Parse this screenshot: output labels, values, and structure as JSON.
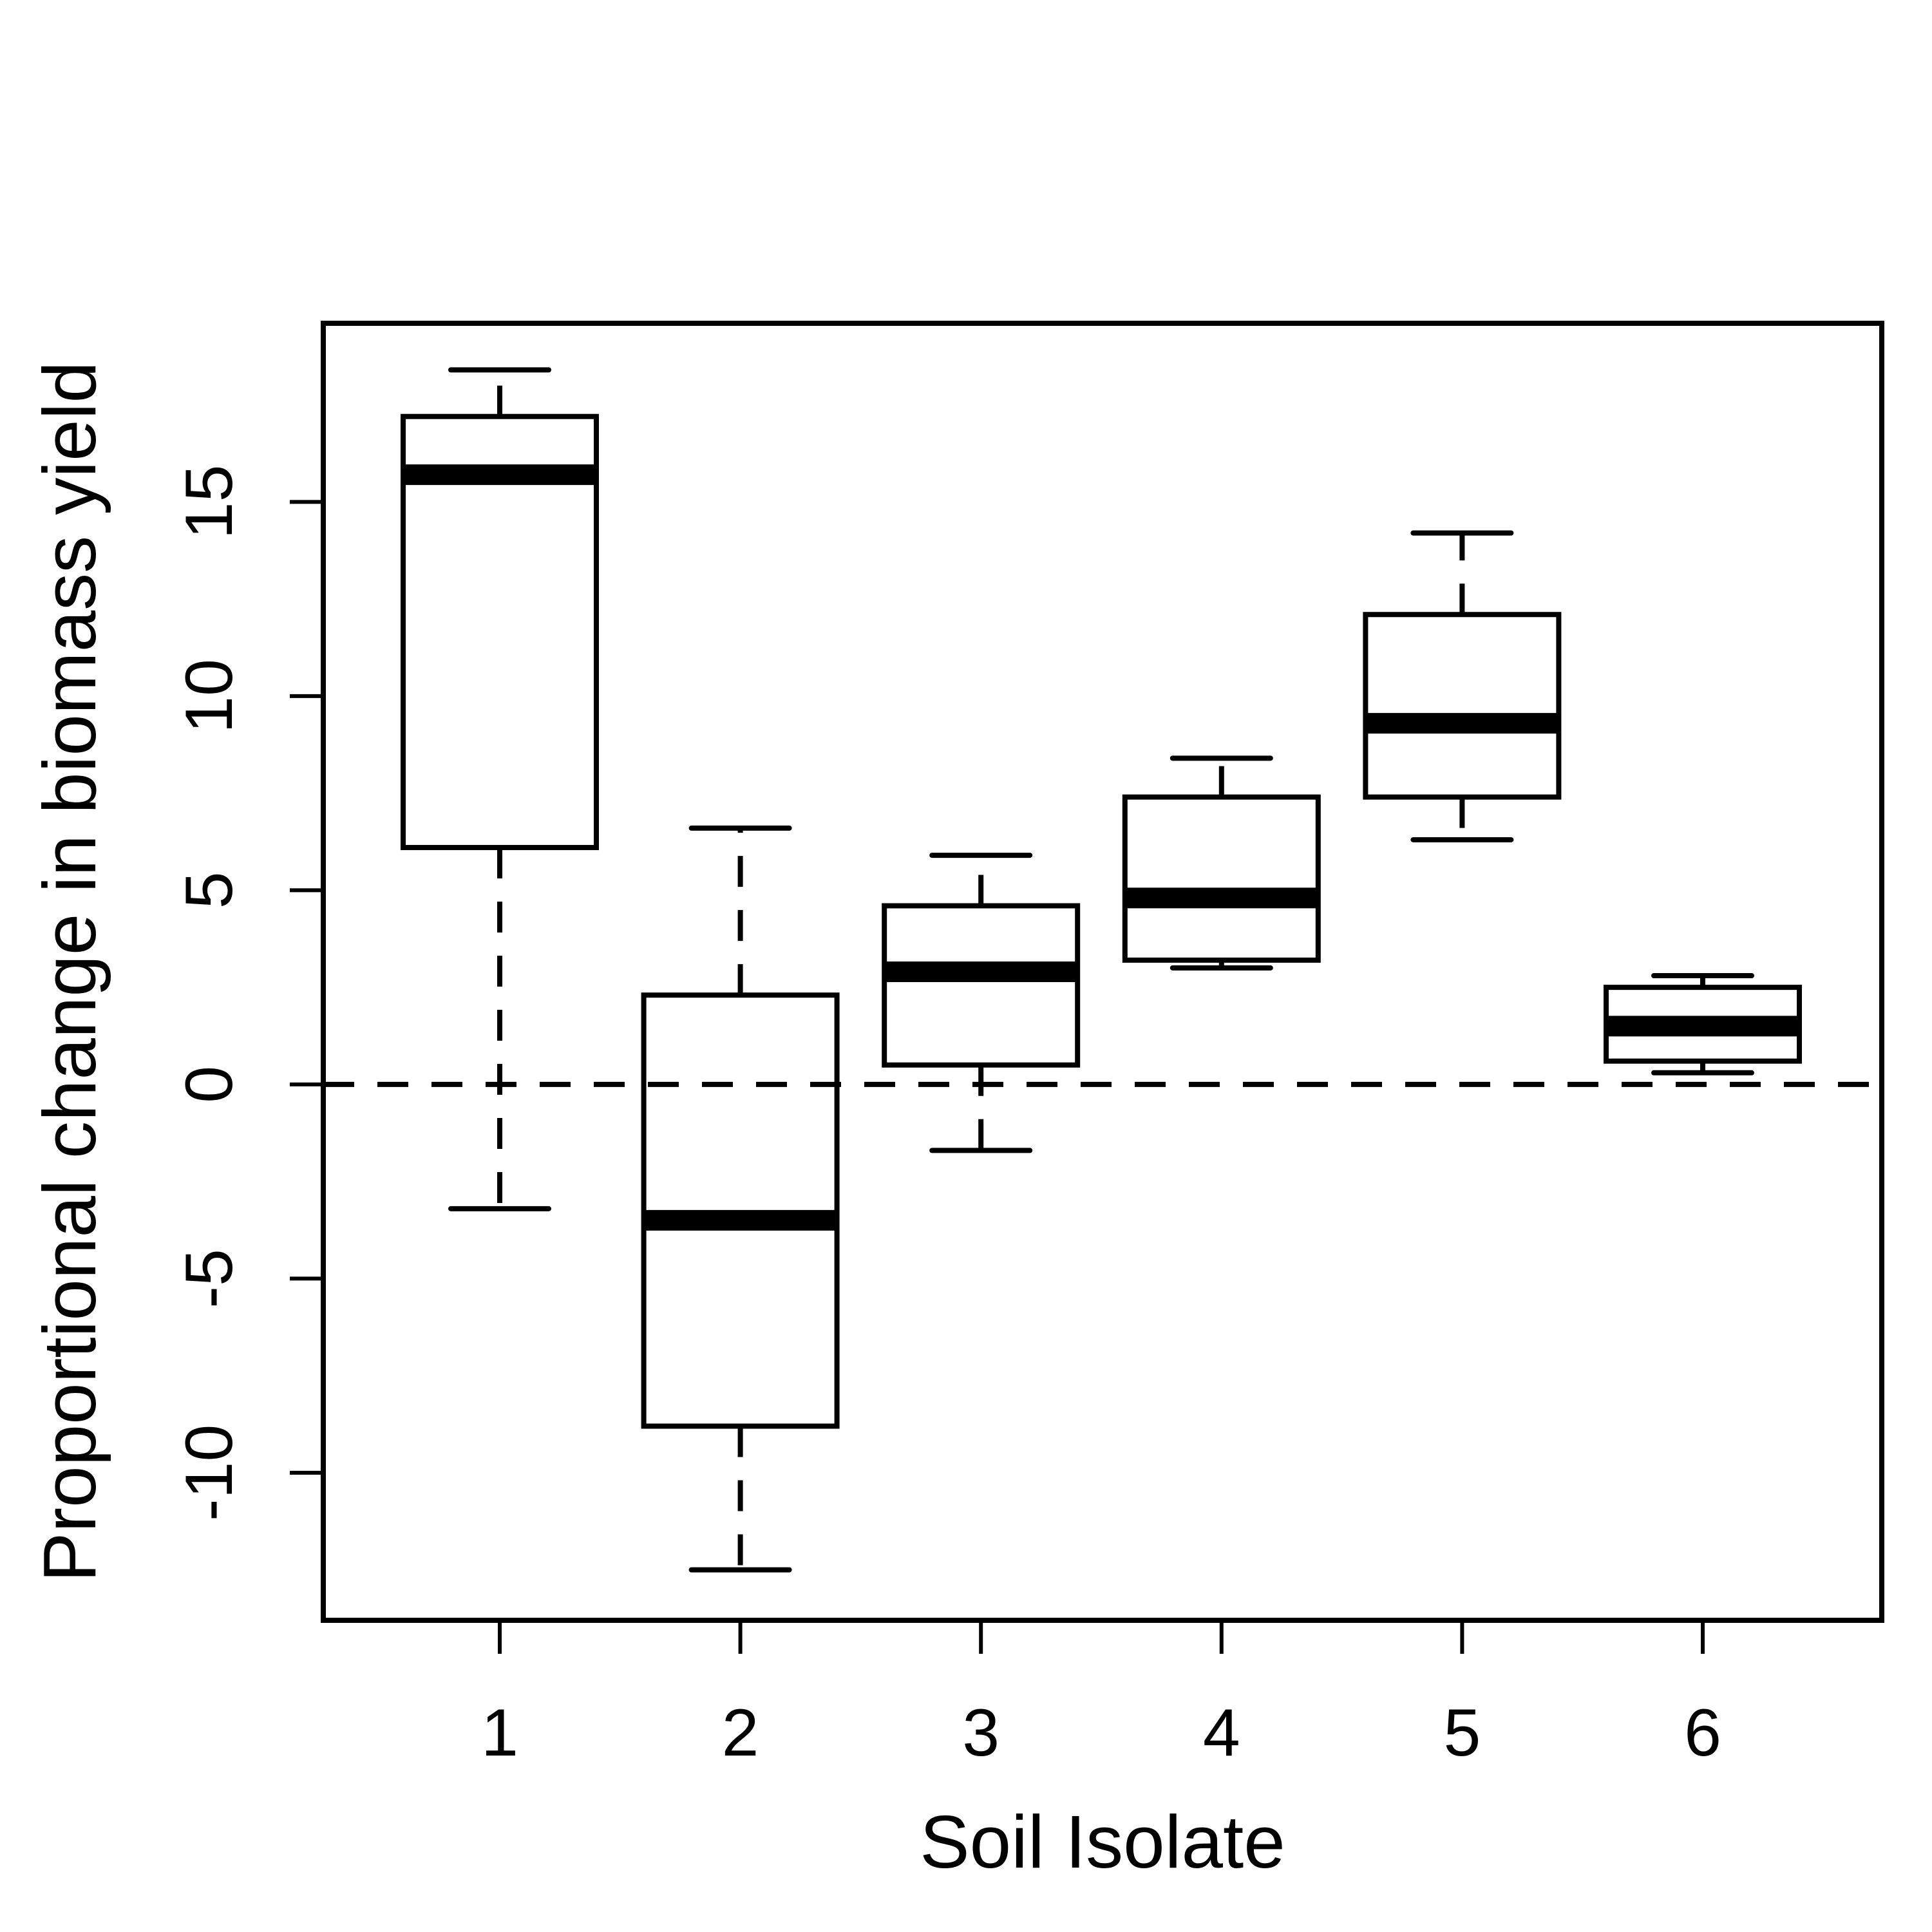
{
  "chart_data": {
    "type": "boxplot",
    "title": "",
    "xlabel": "Soil Isolate",
    "ylabel": "Proportional change in biomass yield",
    "ylim": [
      -13.8,
      19.6
    ],
    "yticks": [
      -10,
      -5,
      0,
      5,
      10,
      15
    ],
    "reference_line": {
      "y": 0,
      "style": "dashed"
    },
    "grid": false,
    "categories": [
      "1",
      "2",
      "3",
      "4",
      "5",
      "6"
    ],
    "boxes": [
      {
        "category": "1",
        "whisker_low": -3.2,
        "q1": 6.1,
        "median": 15.7,
        "q3": 17.2,
        "whisker_high": 18.4
      },
      {
        "category": "2",
        "whisker_low": -12.5,
        "q1": -8.8,
        "median": -3.5,
        "q3": 2.3,
        "whisker_high": 6.6
      },
      {
        "category": "3",
        "whisker_low": -1.7,
        "q1": 0.5,
        "median": 2.9,
        "q3": 4.6,
        "whisker_high": 5.9
      },
      {
        "category": "4",
        "whisker_low": 3.0,
        "q1": 3.2,
        "median": 4.8,
        "q3": 7.4,
        "whisker_high": 8.4
      },
      {
        "category": "5",
        "whisker_low": 6.3,
        "q1": 7.4,
        "median": 9.3,
        "q3": 12.1,
        "whisker_high": 14.2
      },
      {
        "category": "6",
        "whisker_low": 0.3,
        "q1": 0.6,
        "median": 1.5,
        "q3": 2.5,
        "whisker_high": 2.8
      }
    ]
  }
}
